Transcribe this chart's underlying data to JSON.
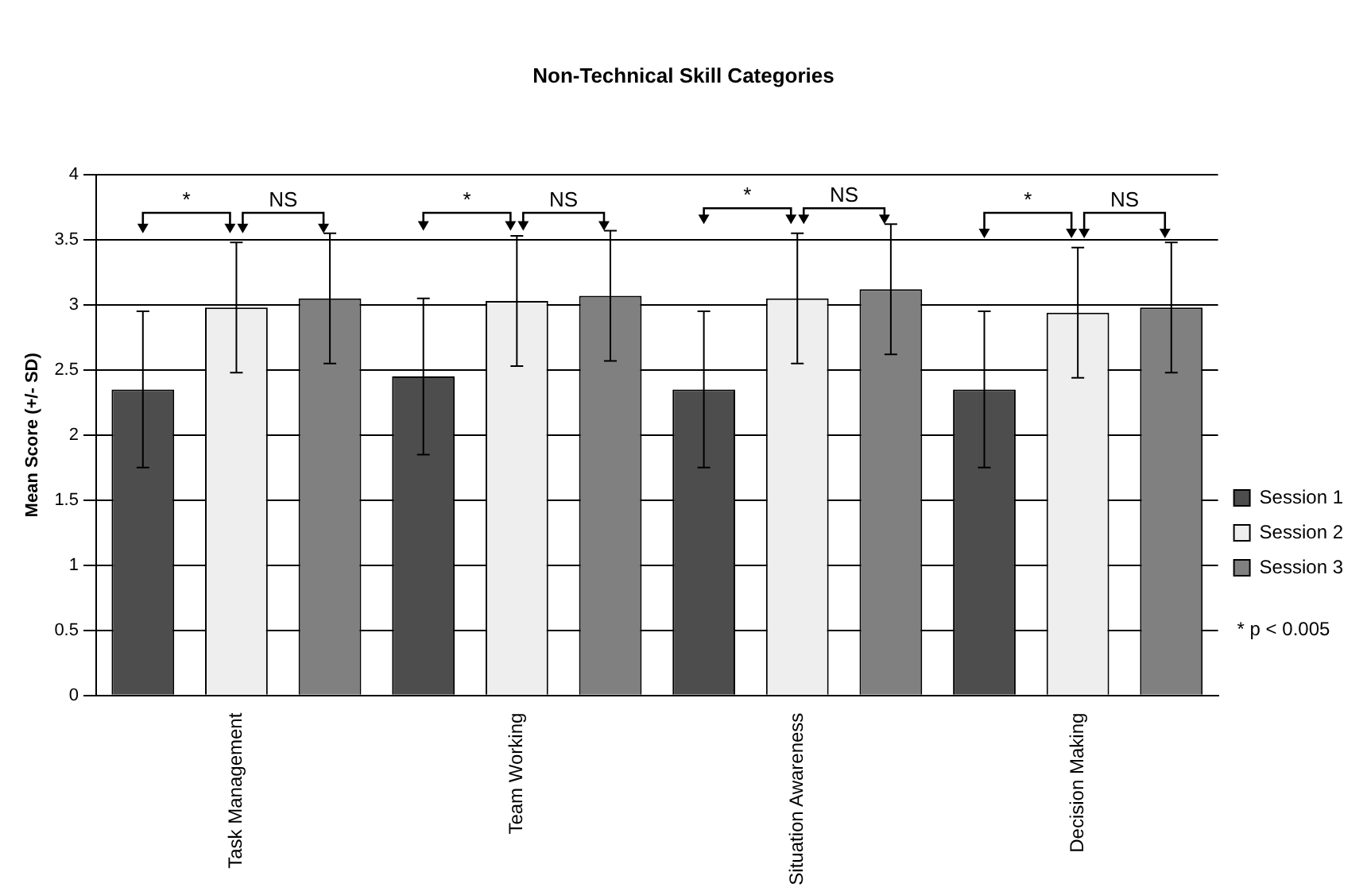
{
  "chart_data": {
    "type": "bar",
    "title": "Non-Technical Skill Categories",
    "ylabel": "Mean Score (+/- SD)",
    "categories": [
      "Task Management",
      "Team Working",
      "Situation Awareness",
      "Decision Making"
    ],
    "series": [
      {
        "name": "Session 1",
        "color": "#4d4d4d",
        "values": [
          2.35,
          2.45,
          2.35,
          2.35
        ],
        "errors": [
          0.6,
          0.6,
          0.6,
          0.6
        ]
      },
      {
        "name": "Session 2",
        "color": "#eeeeee",
        "values": [
          2.98,
          3.03,
          3.05,
          2.94
        ],
        "errors": [
          0.5,
          0.5,
          0.5,
          0.5
        ]
      },
      {
        "name": "Session 3",
        "color": "#808080",
        "values": [
          3.05,
          3.07,
          3.12,
          2.98
        ],
        "errors": [
          0.5,
          0.5,
          0.5,
          0.5
        ]
      }
    ],
    "ylim": [
      0,
      4
    ],
    "yticks": [
      0,
      0.5,
      1,
      1.5,
      2,
      2.5,
      3,
      3.5,
      4
    ],
    "grid": "y",
    "legend": "right",
    "annotations": [
      "*",
      "NS",
      "*",
      "NS",
      "*",
      "NS",
      "*",
      "NS",
      "* p < 0.005"
    ]
  }
}
